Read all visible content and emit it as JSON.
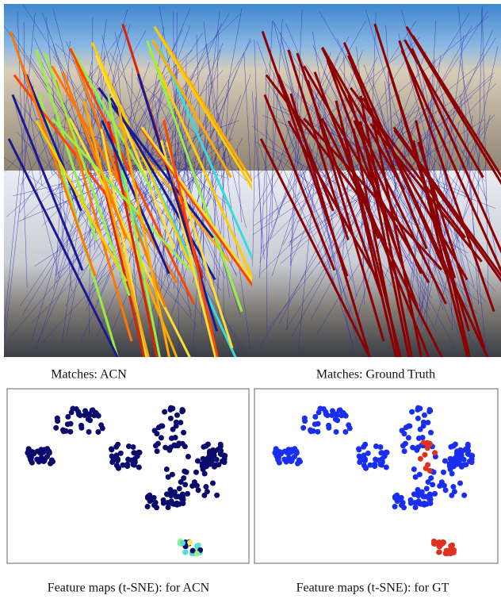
{
  "panels": {
    "matches_acn": {
      "caption": "Matches: ACN"
    },
    "matches_gt": {
      "caption": "Matches: Ground Truth"
    },
    "tsne_acn": {
      "caption": "Feature maps (t-SNE): for ACN"
    },
    "tsne_gt": {
      "caption": "Feature maps (t-SNE): for GT"
    }
  }
}
